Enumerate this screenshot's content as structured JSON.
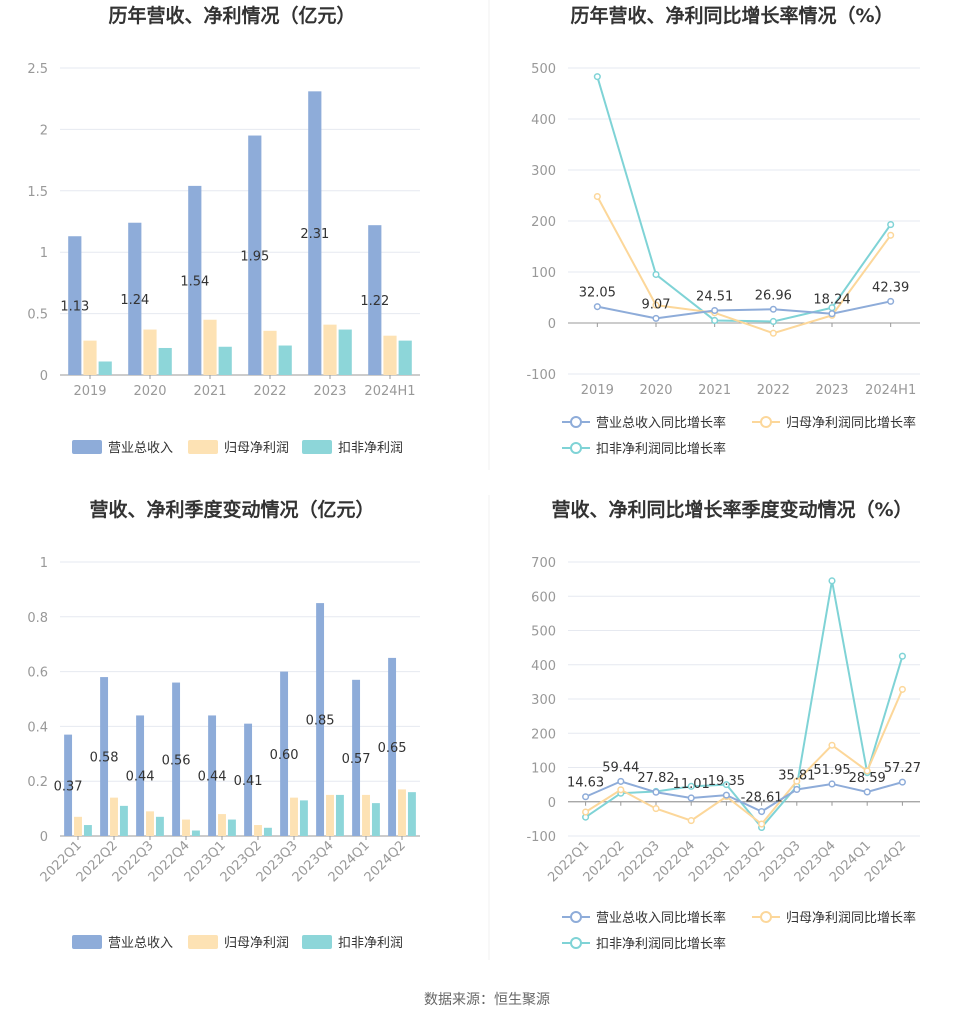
{
  "source": "数据来源：恒生聚源",
  "colors": {
    "revenue": "#8eacd9",
    "net_profit": "#fde2b4",
    "deducted_profit": "#8dd6d9",
    "revenue_line": "#8eacd9",
    "net_line": "#fcd79a",
    "deducted_line": "#7fd3d6",
    "axis": "#999999",
    "grid": "#e6e9f0"
  },
  "chart_data": [
    {
      "type": "bar",
      "title": "历年营收、净利情况（亿元）",
      "categories": [
        "2019",
        "2020",
        "2021",
        "2022",
        "2023",
        "2024H1"
      ],
      "ylim": [
        0,
        2.5
      ],
      "yticks": [
        "0",
        "0.5",
        "1",
        "1.5",
        "2",
        "2.5"
      ],
      "series": [
        {
          "name": "营业总收入",
          "values": [
            1.13,
            1.24,
            1.54,
            1.95,
            2.31,
            1.22
          ],
          "labels": [
            "1.13",
            "1.24",
            "1.54",
            "1.95",
            "2.31",
            "1.22"
          ]
        },
        {
          "name": "归母净利润",
          "values": [
            0.28,
            0.37,
            0.45,
            0.36,
            0.41,
            0.32
          ]
        },
        {
          "name": "扣非净利润",
          "values": [
            0.11,
            0.22,
            0.23,
            0.24,
            0.37,
            0.28
          ]
        }
      ],
      "legend": "bottom"
    },
    {
      "type": "line",
      "title": "历年营收、净利同比增长率情况（%）",
      "categories": [
        "2019",
        "2020",
        "2021",
        "2022",
        "2023",
        "2024H1"
      ],
      "ylim": [
        -100,
        500
      ],
      "yticks": [
        "-100",
        "0",
        "100",
        "200",
        "300",
        "400",
        "500"
      ],
      "series": [
        {
          "name": "营业总收入同比增长率",
          "values": [
            32.05,
            9.07,
            24.51,
            26.96,
            18.24,
            42.39
          ],
          "labels": [
            "32.05",
            "9.07",
            "24.51",
            "26.96",
            "18.24",
            "42.39"
          ]
        },
        {
          "name": "归母净利润同比增长率",
          "values": [
            248,
            35,
            20,
            -20,
            15,
            172
          ]
        },
        {
          "name": "扣非净利润同比增长率",
          "values": [
            483,
            95,
            5,
            3,
            30,
            193
          ]
        }
      ],
      "legend": "bottom"
    },
    {
      "type": "bar",
      "title": "营收、净利季度变动情况（亿元）",
      "categories": [
        "2022Q1",
        "2022Q2",
        "2022Q3",
        "2022Q4",
        "2023Q1",
        "2023Q2",
        "2023Q3",
        "2023Q4",
        "2024Q1",
        "2024Q2"
      ],
      "ylim": [
        0,
        1
      ],
      "yticks": [
        "0",
        "0.2",
        "0.4",
        "0.6",
        "0.8",
        "1"
      ],
      "series": [
        {
          "name": "营业总收入",
          "values": [
            0.37,
            0.58,
            0.44,
            0.56,
            0.44,
            0.41,
            0.6,
            0.85,
            0.57,
            0.65
          ],
          "labels": [
            "0.37",
            "0.58",
            "0.44",
            "0.56",
            "0.44",
            "0.41",
            "0.60",
            "0.85",
            "0.57",
            "0.65"
          ]
        },
        {
          "name": "归母净利润",
          "values": [
            0.07,
            0.14,
            0.09,
            0.06,
            0.08,
            0.04,
            0.14,
            0.15,
            0.15,
            0.17
          ]
        },
        {
          "name": "扣非净利润",
          "values": [
            0.04,
            0.11,
            0.07,
            0.02,
            0.06,
            0.03,
            0.13,
            0.15,
            0.12,
            0.16
          ]
        }
      ],
      "legend": "bottom"
    },
    {
      "type": "line",
      "title": "营收、净利同比增长率季度变动情况（%）",
      "categories": [
        "2022Q1",
        "2022Q2",
        "2022Q3",
        "2022Q4",
        "2023Q1",
        "2023Q2",
        "2023Q3",
        "2023Q4",
        "2024Q1",
        "2024Q2"
      ],
      "ylim": [
        -100,
        700
      ],
      "yticks": [
        "-100",
        "0",
        "100",
        "200",
        "300",
        "400",
        "500",
        "600",
        "700"
      ],
      "series": [
        {
          "name": "营业总收入同比增长率",
          "values": [
            14.63,
            59.44,
            27.82,
            11.01,
            19.35,
            -28.61,
            35.81,
            51.95,
            28.59,
            57.27
          ],
          "labels": [
            "14.63",
            "59.44",
            "27.82",
            "11.01",
            "19.35",
            "-28.61",
            "35.81",
            "51.95",
            "28.59",
            "57.27"
          ]
        },
        {
          "name": "归母净利润同比增长率",
          "values": [
            -30,
            35,
            -20,
            -55,
            15,
            -65,
            60,
            165,
            90,
            328
          ]
        },
        {
          "name": "扣非净利润同比增长率",
          "values": [
            -45,
            25,
            30,
            45,
            50,
            -75,
            45,
            645,
            85,
            425
          ]
        }
      ],
      "legend": "bottom"
    }
  ]
}
